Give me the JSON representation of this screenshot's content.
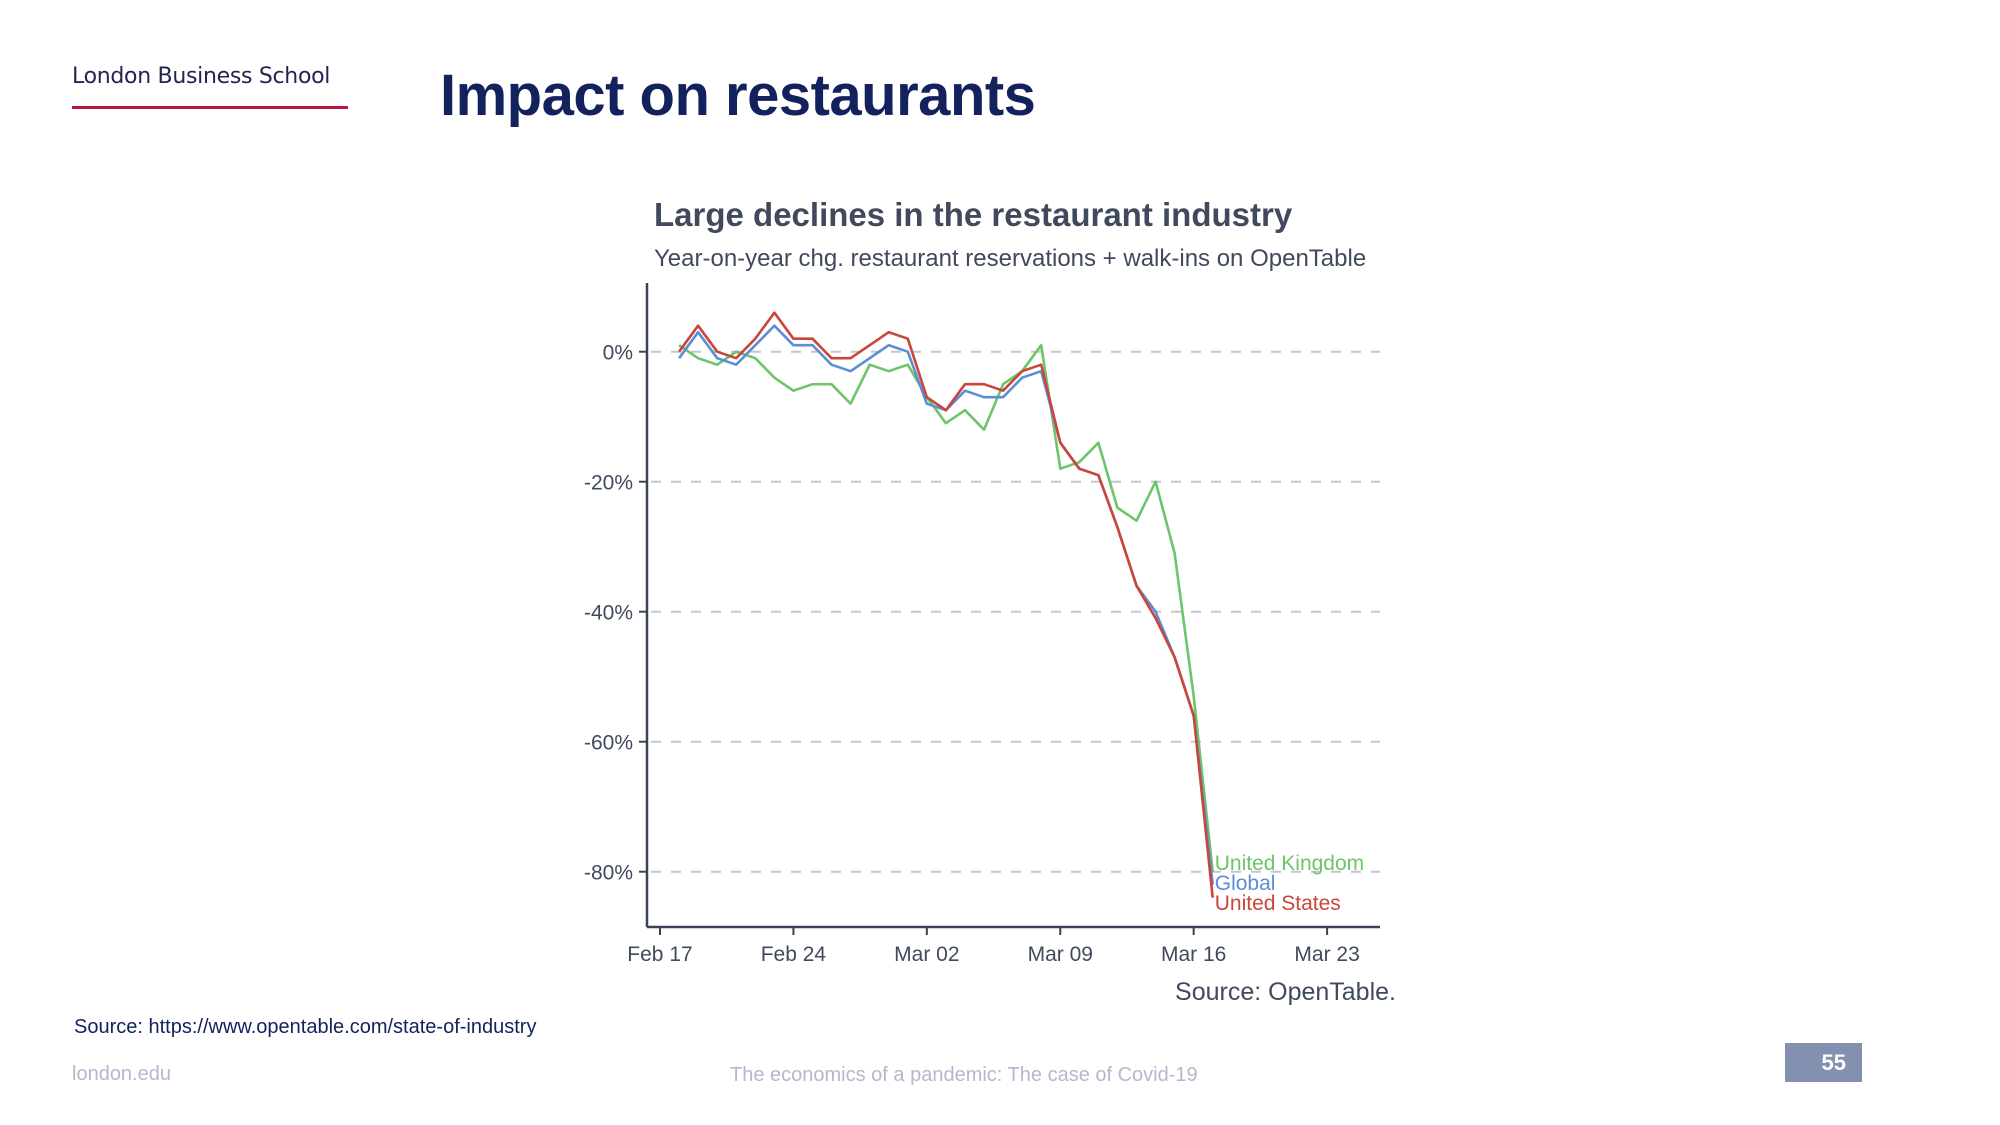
{
  "header": {
    "logo_text": "London Business School",
    "title": "Impact on restaurants"
  },
  "colors": {
    "title": "#13215c",
    "logo_rule": "#b5173e",
    "us": "#c9463d",
    "global": "#5b8ed6",
    "uk": "#6cc56a",
    "page_badge": "#8390b0"
  },
  "chart_data": {
    "type": "line",
    "title": "Large declines in the restaurant industry",
    "subtitle": "Year-on-year chg. restaurant reservations + walk-ins on OpenTable",
    "source": "Source: OpenTable.",
    "xlabel": "",
    "ylabel": "",
    "x_start_date": "2020-02-18",
    "x": [
      "Feb 18",
      "Feb 19",
      "Feb 20",
      "Feb 21",
      "Feb 22",
      "Feb 23",
      "Feb 24",
      "Feb 25",
      "Feb 26",
      "Feb 27",
      "Feb 28",
      "Feb 29",
      "Mar 01",
      "Mar 02",
      "Mar 03",
      "Mar 04",
      "Mar 05",
      "Mar 06",
      "Mar 07",
      "Mar 08",
      "Mar 09",
      "Mar 10",
      "Mar 11",
      "Mar 12",
      "Mar 13",
      "Mar 14",
      "Mar 15",
      "Mar 16",
      "Mar 17"
    ],
    "x_ticks": [
      "Feb 17",
      "Feb 24",
      "Mar 02",
      "Mar 09",
      "Mar 16",
      "Mar 23"
    ],
    "x_range_days_from_feb17": [
      -0.7,
      36
    ],
    "y_ticks": [
      0,
      -20,
      -40,
      -60,
      -80
    ],
    "y_tick_labels": [
      "0%",
      "-20%",
      "-40%",
      "-60%",
      "-80%"
    ],
    "ylim": [
      -89,
      10.5
    ],
    "grid": "horizontal dashed",
    "legend": "direct labels at line ends",
    "series": [
      {
        "name": "United Kingdom",
        "key": "uk",
        "values": [
          1,
          -1,
          -2,
          0,
          -1,
          -4,
          -6,
          -5,
          -5,
          -8,
          -2,
          -3,
          -2,
          -7,
          -11,
          -9,
          -12,
          -5,
          -3,
          1,
          -18,
          -17,
          -14,
          -24,
          -26,
          -20,
          -31,
          -53,
          -80
        ]
      },
      {
        "name": "Global",
        "key": "global",
        "values": [
          -1,
          3,
          -1,
          -2,
          1,
          4,
          1,
          1,
          -2,
          -3,
          -1,
          1,
          0,
          -8,
          -9,
          -6,
          -7,
          -7,
          -4,
          -3,
          -14,
          -18,
          -19,
          -27,
          -36,
          -40,
          -47,
          -56,
          -82
        ]
      },
      {
        "name": "United States",
        "key": "us",
        "values": [
          0,
          4,
          0,
          -1,
          2,
          6,
          2,
          2,
          -1,
          -1,
          1,
          3,
          2,
          -7,
          -9,
          -5,
          -5,
          -6,
          -3,
          -2,
          -14,
          -18,
          -19,
          -27,
          -36,
          -41,
          -47,
          -56,
          -84
        ]
      }
    ]
  },
  "footer": {
    "source_url": "Source: https://www.opentable.com/state-of-industry",
    "site": "london.edu",
    "deck_title": "The economics of a pandemic: The case of Covid-19",
    "page_number": "55"
  }
}
